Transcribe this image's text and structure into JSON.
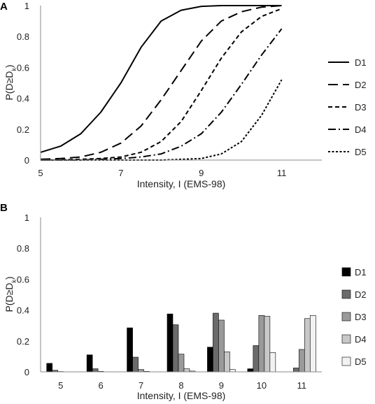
{
  "chart_data": [
    {
      "panel_label": "A",
      "type": "line",
      "xlabel": "Intensity, I (EMS-98)",
      "ylabel": "P(D≥D",
      "ylabel_sub": "k",
      "ylabel_end": ")",
      "xlim": [
        5,
        12
      ],
      "ylim": [
        0,
        1
      ],
      "xticks": [
        "5",
        "7",
        "9",
        "11"
      ],
      "yticks": [
        "0",
        "0.2",
        "0.4",
        "0.6",
        "0.8",
        "1"
      ],
      "legend_position": "right",
      "series": [
        {
          "name": "D1",
          "dash": "solid",
          "x": [
            5,
            5.5,
            6,
            6.5,
            7,
            7.5,
            8,
            8.5,
            9,
            9.5,
            10,
            10.5,
            11
          ],
          "y": [
            0.05,
            0.09,
            0.17,
            0.31,
            0.5,
            0.73,
            0.9,
            0.97,
            0.995,
            1.0,
            1.0,
            1.0,
            1.0
          ]
        },
        {
          "name": "D2",
          "dash": "long-dash",
          "x": [
            5,
            5.5,
            6,
            6.5,
            7,
            7.5,
            8,
            8.5,
            9,
            9.5,
            10,
            10.5,
            11
          ],
          "y": [
            0.005,
            0.01,
            0.02,
            0.05,
            0.11,
            0.22,
            0.39,
            0.58,
            0.77,
            0.9,
            0.96,
            0.99,
            1.0
          ]
        },
        {
          "name": "D3",
          "dash": "short-dash",
          "x": [
            5,
            6,
            6.5,
            7,
            7.5,
            8,
            8.5,
            9,
            9.5,
            10,
            10.5,
            11
          ],
          "y": [
            0.0,
            0.005,
            0.01,
            0.02,
            0.05,
            0.12,
            0.25,
            0.45,
            0.66,
            0.83,
            0.93,
            0.98
          ]
        },
        {
          "name": "D4",
          "dash": "dash-dot",
          "x": [
            5,
            6,
            7,
            7.5,
            8,
            8.5,
            9,
            9.5,
            10,
            10.5,
            11
          ],
          "y": [
            0.0,
            0.0,
            0.01,
            0.02,
            0.04,
            0.09,
            0.17,
            0.31,
            0.49,
            0.68,
            0.85
          ]
        },
        {
          "name": "D5",
          "dash": "dotted",
          "x": [
            5,
            7,
            8,
            8.5,
            9,
            9.5,
            10,
            10.5,
            11
          ],
          "y": [
            0.0,
            0.0,
            0.0,
            0.005,
            0.01,
            0.04,
            0.12,
            0.29,
            0.52
          ]
        }
      ]
    },
    {
      "panel_label": "B",
      "type": "bar",
      "xlabel": "Intensity, I (EMS-98)",
      "ylabel": "P(D≥D",
      "ylabel_sub": "k",
      "ylabel_end": ")",
      "ylim": [
        0,
        1
      ],
      "yticks": [
        "0",
        "0.2",
        "0.4",
        "0.6",
        "0.8",
        "1"
      ],
      "categories": [
        "5",
        "6",
        "7",
        "8",
        "9",
        "10",
        "11"
      ],
      "legend_position": "right",
      "series": [
        {
          "name": "D1",
          "color": "#000000",
          "values": [
            0.055,
            0.11,
            0.285,
            0.375,
            0.16,
            0.02,
            0.0
          ]
        },
        {
          "name": "D2",
          "color": "#6b6b6b",
          "values": [
            0.01,
            0.02,
            0.095,
            0.305,
            0.38,
            0.17,
            0.025
          ]
        },
        {
          "name": "D3",
          "color": "#9a9a9a",
          "values": [
            0.002,
            0.003,
            0.015,
            0.115,
            0.335,
            0.365,
            0.145
          ]
        },
        {
          "name": "D4",
          "color": "#c8c8c8",
          "values": [
            0.0,
            0.0,
            0.003,
            0.02,
            0.13,
            0.36,
            0.345
          ]
        },
        {
          "name": "D5",
          "color": "#f2f2f2",
          "values": [
            0.0,
            0.0,
            0.0,
            0.005,
            0.015,
            0.125,
            0.365
          ]
        }
      ]
    }
  ]
}
